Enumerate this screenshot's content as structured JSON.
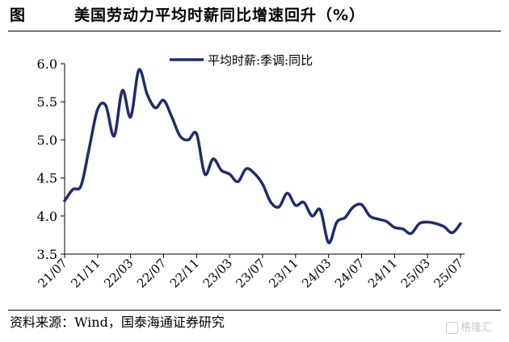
{
  "figure": {
    "label": "图",
    "title": "美国劳动力平均时薪同比增速回升（%）",
    "source": "资料来源：Wind，国泰海通证券研究",
    "watermark": "格隆汇"
  },
  "colors": {
    "line": "#1f2d6b",
    "axis": "#000000"
  },
  "chart_data": {
    "type": "line",
    "title": "美国劳动力平均时薪同比增速回升（%）",
    "xlabel": "",
    "ylabel": "",
    "ylim": [
      3.5,
      6.0
    ],
    "yticks": [
      3.5,
      4.0,
      4.5,
      5.0,
      5.5,
      6.0
    ],
    "ytick_labels": [
      "3.5",
      "4.0",
      "4.5",
      "5.0",
      "5.5",
      "6.0"
    ],
    "xtick_labels": [
      "21/07",
      "21/11",
      "22/03",
      "22/07",
      "22/11",
      "23/03",
      "23/07",
      "23/11",
      "24/03",
      "24/07",
      "24/11",
      "25/03",
      "25/07"
    ],
    "grid": false,
    "legend": "top",
    "x": [
      "21/07",
      "21/08",
      "21/09",
      "21/10",
      "21/11",
      "21/12",
      "22/01",
      "22/02",
      "22/03",
      "22/04",
      "22/05",
      "22/06",
      "22/07",
      "22/08",
      "22/09",
      "22/10",
      "22/11",
      "22/12",
      "23/01",
      "23/02",
      "23/03",
      "23/04",
      "23/05",
      "23/06",
      "23/07",
      "23/08",
      "23/09",
      "23/10",
      "23/11",
      "23/12",
      "24/01",
      "24/02",
      "24/03",
      "24/04",
      "24/05",
      "24/06",
      "24/07",
      "24/08",
      "24/09",
      "24/10",
      "24/11",
      "24/12",
      "25/01",
      "25/02",
      "25/03",
      "25/04",
      "25/05",
      "25/06",
      "25/07"
    ],
    "series": [
      {
        "name": "平均时薪:季调:同比",
        "values": [
          4.2,
          4.35,
          4.4,
          4.9,
          5.4,
          5.45,
          5.05,
          5.65,
          5.3,
          5.92,
          5.6,
          5.42,
          5.52,
          5.3,
          5.05,
          5.0,
          5.08,
          4.55,
          4.75,
          4.6,
          4.55,
          4.45,
          4.62,
          4.56,
          4.42,
          4.18,
          4.12,
          4.3,
          4.14,
          4.18,
          4.0,
          4.08,
          3.65,
          3.92,
          3.98,
          4.12,
          4.15,
          4.0,
          3.96,
          3.93,
          3.85,
          3.83,
          3.77,
          3.9,
          3.92,
          3.9,
          3.86,
          3.78,
          3.9
        ]
      }
    ]
  }
}
